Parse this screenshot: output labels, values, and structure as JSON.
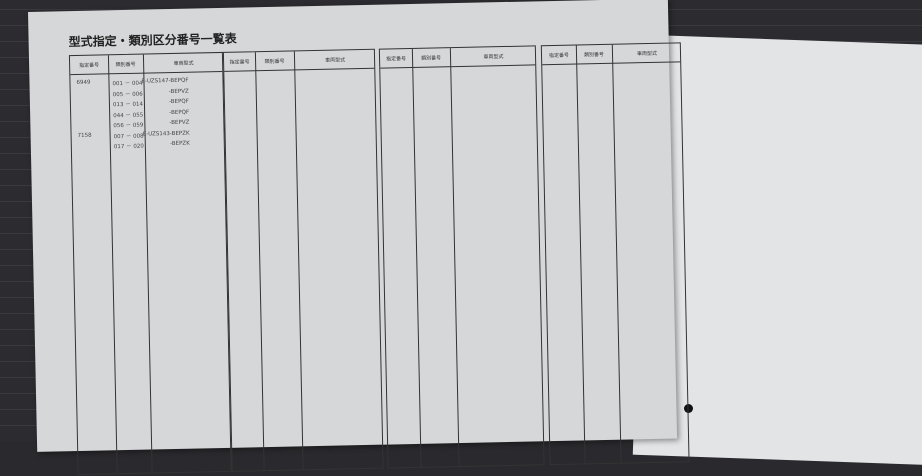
{
  "title": "型式指定・類別区分番号一覧表",
  "headers": {
    "designation": "指定番号",
    "category": "類別番号",
    "model": "車両型式"
  },
  "rows": [
    {
      "designation": "6949",
      "category": "001 － 004",
      "model": "E-UZS147-BEPQF"
    },
    {
      "designation": "",
      "category": "005 － 006",
      "model": "-BEPVZ"
    },
    {
      "designation": "",
      "category": "013 － 014",
      "model": "-BEPQF"
    },
    {
      "designation": "",
      "category": "044 － 055",
      "model": "-BEPQF"
    },
    {
      "designation": "",
      "category": "056 － 059",
      "model": "-BEPVZ"
    },
    {
      "designation": "7158",
      "category": "007 － 008",
      "model": "E-UZS143-BEPZK"
    },
    {
      "designation": "",
      "category": "017 － 020",
      "model": "-BEPZK"
    }
  ]
}
